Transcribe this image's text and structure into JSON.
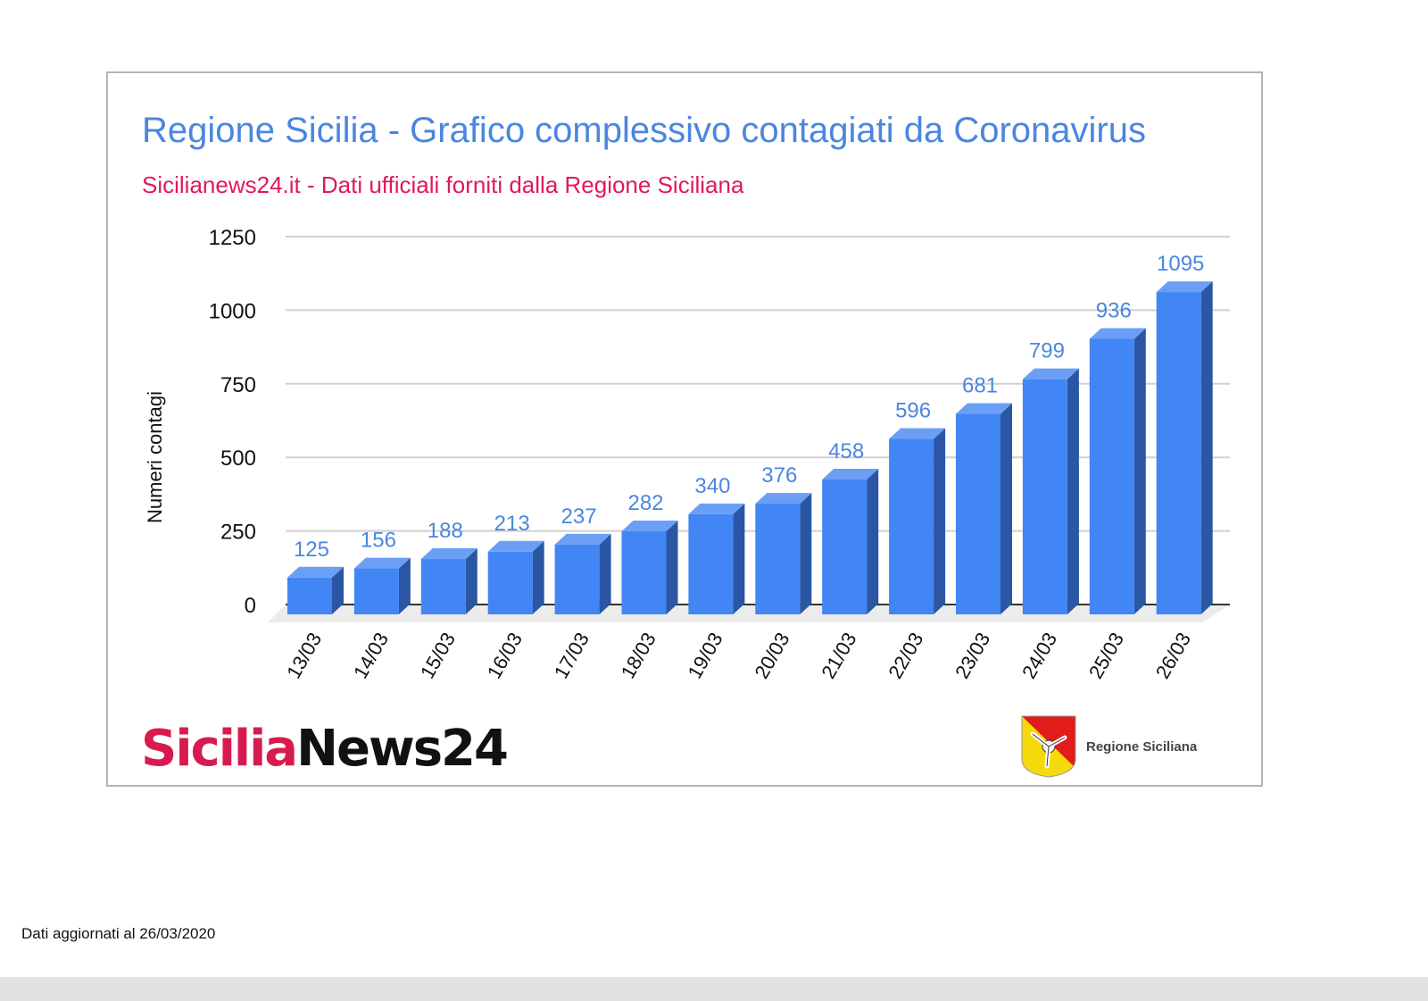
{
  "title": "Regione Sicilia - Grafico complessivo contagiati da Coronavirus",
  "subtitle": "Sicilianews24.it - Dati ufficiali forniti dalla Regione Siciliana",
  "colors": {
    "title": "#4a86e0",
    "subtitle": "#e0195a",
    "bar_front": "#4285f4",
    "bar_top": "#6a9ff5",
    "bar_side": "#2a56a4",
    "data_label": "#4a86e0"
  },
  "logos": {
    "left_part1": "Sicilia",
    "left_part2": "News24",
    "right_label": "Regione Siciliana",
    "right_icon": "trinacria-coat-of-arms-icon"
  },
  "footer": "Dati aggiornati al 26/03/2020",
  "chart_data": {
    "type": "bar",
    "title": "Regione Sicilia - Grafico complessivo contagiati da Coronavirus",
    "subtitle": "Sicilianews24.it - Dati ufficiali forniti dalla Regione Siciliana",
    "xlabel": "",
    "ylabel": "Numeri contagi",
    "categories": [
      "13/03",
      "14/03",
      "15/03",
      "16/03",
      "17/03",
      "18/03",
      "19/03",
      "20/03",
      "21/03",
      "22/03",
      "23/03",
      "24/03",
      "25/03",
      "26/03"
    ],
    "values": [
      125,
      156,
      188,
      213,
      237,
      282,
      340,
      376,
      458,
      596,
      681,
      799,
      936,
      1095
    ],
    "ylim": [
      0,
      1250
    ],
    "yticks": [
      0,
      250,
      500,
      750,
      1000,
      1250
    ],
    "grid": true,
    "style": "3d-column",
    "data_labels": true,
    "legend": null
  }
}
